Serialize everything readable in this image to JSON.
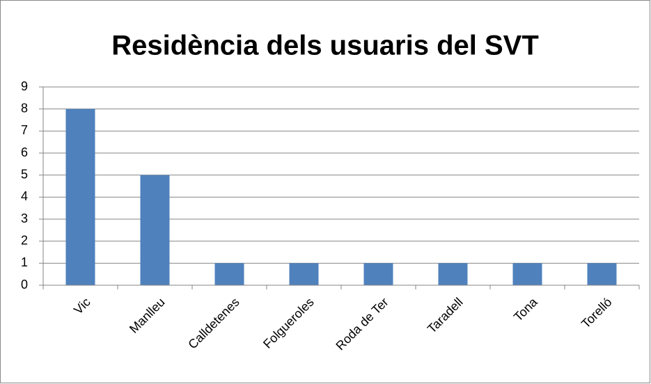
{
  "chart_data": {
    "type": "bar",
    "title": "Residència dels usuaris del SVT",
    "categories": [
      "Vic",
      "Manlleu",
      "Calldetenes",
      "Folgueroles",
      "Roda de Ter",
      "Taradell",
      "Tona",
      "Torelló"
    ],
    "values": [
      8,
      5,
      1,
      1,
      1,
      1,
      1,
      1
    ],
    "color": "#4f81bd",
    "ylim": [
      0,
      9
    ],
    "yticks": [
      0,
      1,
      2,
      3,
      4,
      5,
      6,
      7,
      8,
      9
    ],
    "grid": true
  }
}
